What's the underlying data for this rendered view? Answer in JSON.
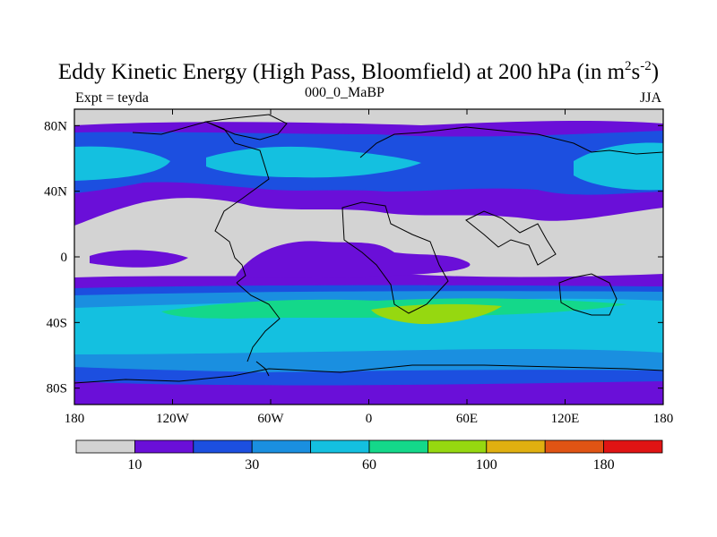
{
  "title": {
    "main": "Eddy Kinetic Energy (High Pass, Bloomfield) at 200 hPa (in m",
    "sup1": "2",
    "s": "s",
    "sup2": "-2",
    "close": ")"
  },
  "subtitle_center": "000_0_MaBP",
  "subtitle_left": "Expt = teyda",
  "subtitle_right": "JJA",
  "lat_labels": [
    "80N",
    "40N",
    "0",
    "40S",
    "80S"
  ],
  "lat_values": [
    80,
    40,
    0,
    -40,
    -80
  ],
  "lon_labels": [
    "180",
    "120W",
    "60W",
    "0",
    "60E",
    "120E",
    "180"
  ],
  "lon_values": [
    -180,
    -120,
    -60,
    0,
    60,
    120,
    180
  ],
  "colorbar": {
    "labels": [
      "10",
      "30",
      "60",
      "100",
      "180"
    ],
    "colors": [
      "#d3d3d3",
      "#6a0fd8",
      "#1c4fe0",
      "#1a8fe0",
      "#14c0e0",
      "#14d88a",
      "#96d810",
      "#e0b010",
      "#e05414",
      "#e01414"
    ]
  },
  "colors": {
    "c1": "#d3d3d3",
    "c2": "#6a0fd8",
    "c3": "#1c4fe0",
    "c4": "#1a8fe0",
    "c5": "#14c0e0",
    "c6": "#14d88a",
    "c7": "#96d810"
  }
}
